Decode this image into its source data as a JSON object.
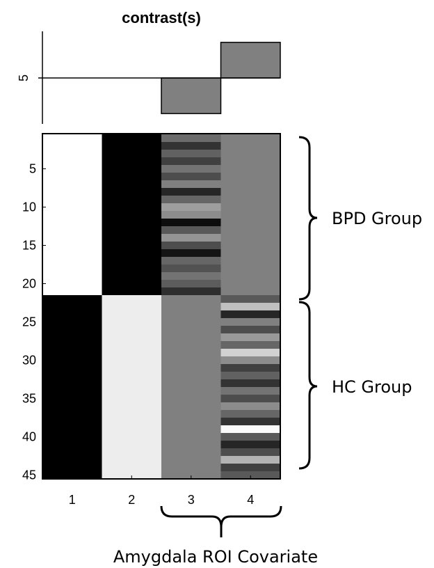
{
  "chart_data": [
    {
      "type": "bar",
      "title": "contrast(s)",
      "categories": [
        "1",
        "2",
        "3",
        "4"
      ],
      "values": [
        0,
        0,
        -5,
        5
      ],
      "yticks": [
        "5"
      ],
      "bar_color": "#808080",
      "ylim": [
        -6.5,
        6.5
      ]
    },
    {
      "type": "heatmap",
      "colormap": "gray",
      "columns": [
        "1",
        "2",
        "3",
        "4"
      ],
      "yticks": [
        "5",
        "10",
        "15",
        "20",
        "25",
        "30",
        "35",
        "40",
        "45"
      ],
      "n_rows": 45,
      "clim": [
        0,
        1
      ],
      "column_values": [
        [
          1,
          1,
          1,
          1,
          1,
          1,
          1,
          1,
          1,
          1,
          1,
          1,
          1,
          1,
          1,
          1,
          1,
          1,
          1,
          1,
          1,
          0,
          0,
          0,
          0,
          0,
          0,
          0,
          0,
          0,
          0,
          0,
          0,
          0,
          0,
          0,
          0,
          0,
          0,
          0,
          0,
          0,
          0,
          0,
          0
        ],
        [
          0,
          0,
          0,
          0,
          0,
          0,
          0,
          0,
          0,
          0,
          0,
          0,
          0,
          0,
          0,
          0,
          0,
          0,
          0,
          0,
          0,
          0.93,
          0.93,
          0.93,
          0.93,
          0.93,
          0.93,
          0.93,
          0.93,
          0.93,
          0.93,
          0.93,
          0.93,
          0.93,
          0.93,
          0.93,
          0.93,
          0.93,
          0.93,
          0.93,
          0.93,
          0.93,
          0.93,
          0.93,
          0.93
        ],
        [
          0.42,
          0.2,
          0.38,
          0.25,
          0.45,
          0.3,
          0.5,
          0.15,
          0.4,
          0.62,
          0.55,
          0.05,
          0.35,
          0.58,
          0.3,
          0.08,
          0.4,
          0.32,
          0.45,
          0.36,
          0.18,
          0.5,
          0.5,
          0.5,
          0.5,
          0.5,
          0.5,
          0.5,
          0.5,
          0.5,
          0.5,
          0.5,
          0.5,
          0.5,
          0.5,
          0.5,
          0.5,
          0.5,
          0.5,
          0.5,
          0.5,
          0.5,
          0.5,
          0.5,
          0.5
        ],
        [
          0.5,
          0.5,
          0.5,
          0.5,
          0.5,
          0.5,
          0.5,
          0.5,
          0.5,
          0.5,
          0.5,
          0.5,
          0.5,
          0.5,
          0.5,
          0.5,
          0.5,
          0.5,
          0.5,
          0.5,
          0.5,
          0.35,
          0.75,
          0.15,
          0.5,
          0.3,
          0.6,
          0.4,
          0.82,
          0.55,
          0.25,
          0.38,
          0.2,
          0.45,
          0.3,
          0.55,
          0.4,
          0.2,
          0.98,
          0.35,
          0.15,
          0.3,
          0.7,
          0.25,
          0.35
        ]
      ]
    }
  ],
  "annotations": {
    "bpd_group": "BPD Group",
    "hc_group": "HC Group",
    "covariate": "Amygdala ROI Covariate"
  }
}
